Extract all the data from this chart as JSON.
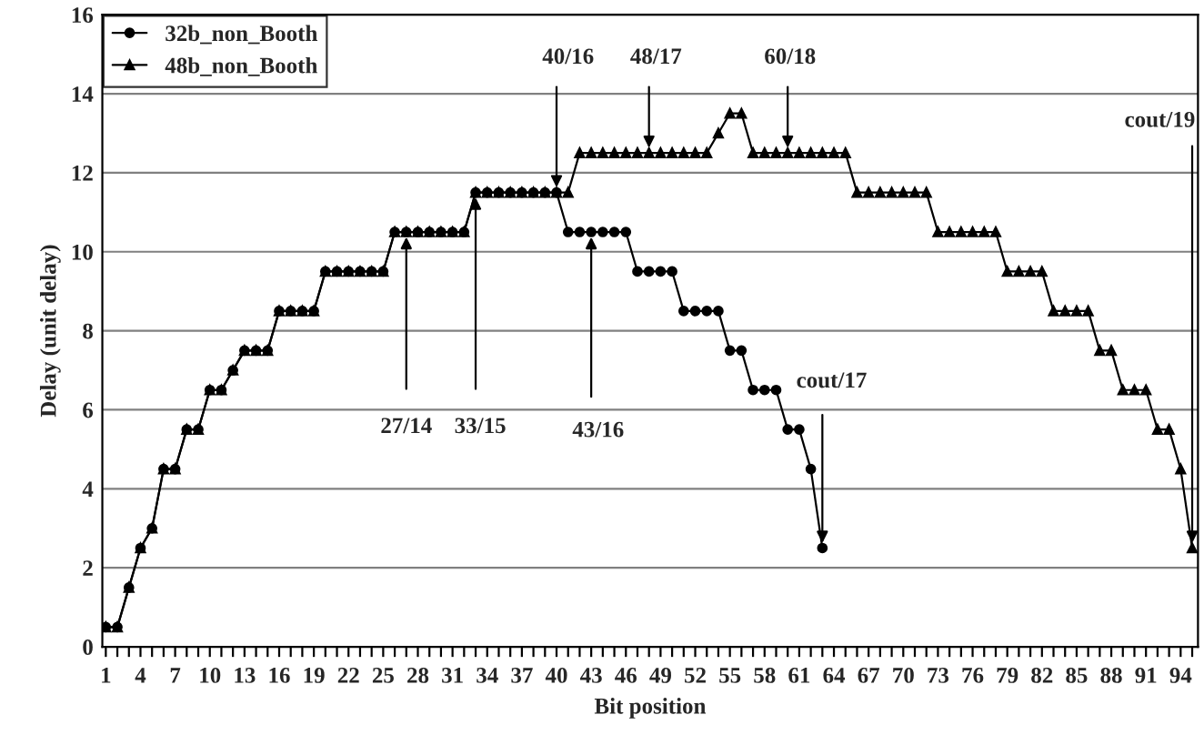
{
  "chart_data": {
    "type": "line",
    "xlabel": "Bit position",
    "ylabel": "Delay (unit delay)",
    "x": [
      1,
      2,
      3,
      4,
      5,
      6,
      7,
      8,
      9,
      10,
      11,
      12,
      13,
      14,
      15,
      16,
      17,
      18,
      19,
      20,
      21,
      22,
      23,
      24,
      25,
      26,
      27,
      28,
      29,
      30,
      31,
      32,
      33,
      34,
      35,
      36,
      37,
      38,
      39,
      40,
      41,
      42,
      43,
      44,
      45,
      46,
      47,
      48,
      49,
      50,
      51,
      52,
      53,
      54,
      55,
      56,
      57,
      58,
      59,
      60,
      61,
      62,
      63,
      64,
      65,
      66,
      67,
      68,
      69,
      70,
      71,
      72,
      73,
      74,
      75,
      76,
      77,
      78,
      79,
      80,
      81,
      82,
      83,
      84,
      85,
      86,
      87,
      88,
      89,
      90,
      91,
      92,
      93,
      94,
      95
    ],
    "series": [
      {
        "name": "32b_non_Booth",
        "color": "#000000",
        "marker": "circle",
        "values": [
          0.5,
          0.5,
          1.5,
          2.5,
          3,
          4.5,
          4.5,
          5.5,
          5.5,
          6.5,
          6.5,
          7,
          7.5,
          7.5,
          7.5,
          8.5,
          8.5,
          8.5,
          8.5,
          9.5,
          9.5,
          9.5,
          9.5,
          9.5,
          9.5,
          10.5,
          10.5,
          10.5,
          10.5,
          10.5,
          10.5,
          10.5,
          11.5,
          11.5,
          11.5,
          11.5,
          11.5,
          11.5,
          11.5,
          11.5,
          10.5,
          10.5,
          10.5,
          10.5,
          10.5,
          10.5,
          9.5,
          9.5,
          9.5,
          9.5,
          8.5,
          8.5,
          8.5,
          8.5,
          7.5,
          7.5,
          6.5,
          6.5,
          6.5,
          5.5,
          5.5,
          4.5,
          2.5,
          null,
          null,
          null,
          null,
          null,
          null,
          null,
          null,
          null,
          null,
          null,
          null,
          null,
          null,
          null,
          null,
          null,
          null,
          null,
          null,
          null,
          null,
          null,
          null,
          null,
          null,
          null,
          null,
          null,
          null,
          null,
          null
        ]
      },
      {
        "name": "48b_non_Booth",
        "color": "#000000",
        "marker": "triangle",
        "values": [
          0.5,
          0.5,
          1.5,
          2.5,
          3,
          4.5,
          4.5,
          5.5,
          5.5,
          6.5,
          6.5,
          7,
          7.5,
          7.5,
          7.5,
          8.5,
          8.5,
          8.5,
          8.5,
          9.5,
          9.5,
          9.5,
          9.5,
          9.5,
          9.5,
          10.5,
          10.5,
          10.5,
          10.5,
          10.5,
          10.5,
          10.5,
          11.5,
          11.5,
          11.5,
          11.5,
          11.5,
          11.5,
          11.5,
          11.5,
          11.5,
          12.5,
          12.5,
          12.5,
          12.5,
          12.5,
          12.5,
          12.5,
          12.5,
          12.5,
          12.5,
          12.5,
          12.5,
          13,
          13.5,
          13.5,
          12.5,
          12.5,
          12.5,
          12.5,
          12.5,
          12.5,
          12.5,
          12.5,
          12.5,
          11.5,
          11.5,
          11.5,
          11.5,
          11.5,
          11.5,
          11.5,
          10.5,
          10.5,
          10.5,
          10.5,
          10.5,
          10.5,
          9.5,
          9.5,
          9.5,
          9.5,
          8.5,
          8.5,
          8.5,
          8.5,
          7.5,
          7.5,
          6.5,
          6.5,
          6.5,
          5.5,
          5.5,
          4.5,
          2.5
        ]
      }
    ],
    "xlim": [
      0.7,
      95.5
    ],
    "xticks": [
      1,
      {
        "value": 2,
        "label": null
      },
      {
        "value": 3,
        "label": null
      },
      4,
      {
        "value": 5,
        "label": null
      },
      {
        "value": 6,
        "label": null
      },
      7,
      {
        "value": 8,
        "label": null
      },
      {
        "value": 9,
        "label": null
      },
      10,
      {
        "value": 11,
        "label": null
      },
      {
        "value": 12,
        "label": null
      },
      13,
      {
        "value": 14,
        "label": null
      },
      {
        "value": 15,
        "label": null
      },
      16,
      {
        "value": 17,
        "label": null
      },
      {
        "value": 18,
        "label": null
      },
      19,
      {
        "value": 20,
        "label": null
      },
      {
        "value": 21,
        "label": null
      },
      22,
      {
        "value": 23,
        "label": null
      },
      {
        "value": 24,
        "label": null
      },
      25,
      {
        "value": 26,
        "label": null
      },
      {
        "value": 27,
        "label": null
      },
      28,
      {
        "value": 29,
        "label": null
      },
      {
        "value": 30,
        "label": null
      },
      31,
      {
        "value": 32,
        "label": null
      },
      {
        "value": 33,
        "label": null
      },
      34,
      {
        "value": 35,
        "label": null
      },
      {
        "value": 36,
        "label": null
      },
      37,
      {
        "value": 38,
        "label": null
      },
      {
        "value": 39,
        "label": null
      },
      40,
      {
        "value": 41,
        "label": null
      },
      {
        "value": 42,
        "label": null
      },
      43,
      {
        "value": 44,
        "label": null
      },
      {
        "value": 45,
        "label": null
      },
      46,
      {
        "value": 47,
        "label": null
      },
      {
        "value": 48,
        "label": null
      },
      49,
      {
        "value": 50,
        "label": null
      },
      {
        "value": 51,
        "label": null
      },
      52,
      {
        "value": 53,
        "label": null
      },
      {
        "value": 54,
        "label": null
      },
      55,
      {
        "value": 56,
        "label": null
      },
      {
        "value": 57,
        "label": null
      },
      58,
      {
        "value": 59,
        "label": null
      },
      {
        "value": 60,
        "label": null
      },
      61,
      {
        "value": 62,
        "label": null
      },
      {
        "value": 63,
        "label": null
      },
      64,
      {
        "value": 65,
        "label": null
      },
      {
        "value": 66,
        "label": null
      },
      67,
      {
        "value": 68,
        "label": null
      },
      {
        "value": 69,
        "label": null
      },
      70,
      {
        "value": 71,
        "label": null
      },
      {
        "value": 72,
        "label": null
      },
      73,
      {
        "value": 74,
        "label": null
      },
      {
        "value": 75,
        "label": null
      },
      76,
      {
        "value": 77,
        "label": null
      },
      {
        "value": 78,
        "label": null
      },
      79,
      {
        "value": 80,
        "label": null
      },
      {
        "value": 81,
        "label": null
      },
      82,
      {
        "value": 83,
        "label": null
      },
      {
        "value": 84,
        "label": null
      },
      85,
      {
        "value": 86,
        "label": null
      },
      {
        "value": 87,
        "label": null
      },
      88,
      {
        "value": 89,
        "label": null
      },
      {
        "value": 90,
        "label": null
      },
      91,
      {
        "value": 92,
        "label": null
      },
      {
        "value": 93,
        "label": null
      },
      94,
      {
        "value": 95,
        "label": null
      }
    ],
    "ylim": [
      0,
      16
    ],
    "yticks": [
      0,
      2,
      4,
      6,
      8,
      10,
      12,
      14,
      16
    ],
    "grid": "y",
    "legend": "top left",
    "line_style": "solid",
    "annotations": [
      {
        "text": "27/14",
        "x": 27,
        "y": 10.5
      },
      {
        "text": "33/15",
        "x": 33,
        "y": 11.5
      },
      {
        "text": "43/16",
        "x": 43,
        "y": 10.5
      },
      {
        "text": "40/16",
        "x": 40,
        "y": 11.5
      },
      {
        "text": "48/17",
        "x": 48,
        "y": 12.5
      },
      {
        "text": "60/18",
        "x": 60,
        "y": 12.5
      },
      {
        "text": "cout/17",
        "x": 63,
        "y": 2.5
      },
      {
        "text": "cout/19",
        "x": 95,
        "y": 2.5
      }
    ]
  }
}
